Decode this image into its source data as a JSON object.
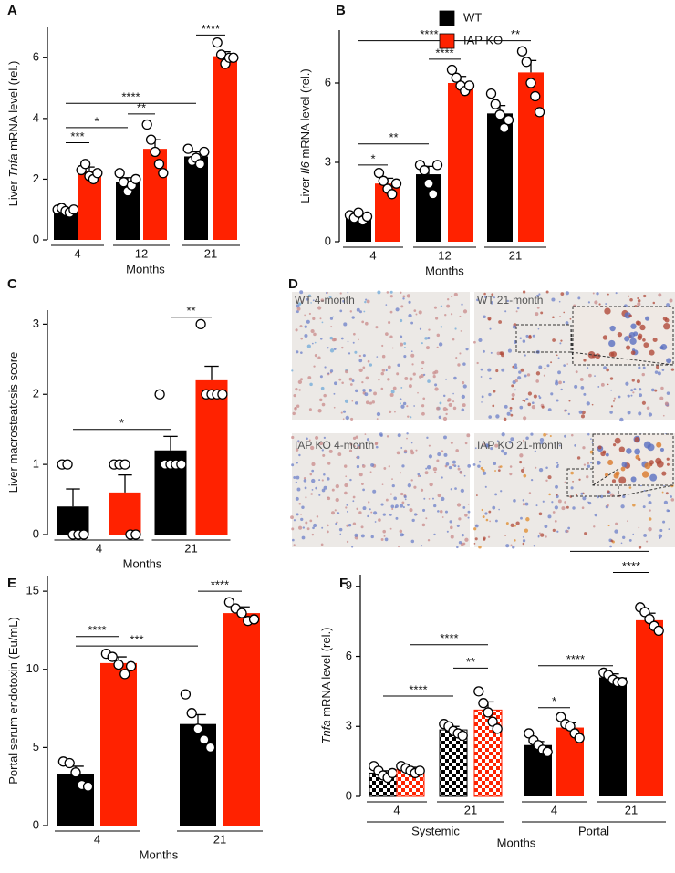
{
  "chart_data": [
    {
      "type": "bar",
      "panel": "A",
      "y_label": [
        "Liver ",
        "Tnfa",
        " mRNA level (rel.)"
      ],
      "y_label_italic": [
        false,
        true,
        false
      ],
      "x_label": "Months",
      "categories": [
        "4",
        "12",
        "21"
      ],
      "series": [
        {
          "color": "#000000",
          "values": [
            1.0,
            1.9,
            2.75
          ],
          "errors": [
            0.05,
            0.15,
            0.15
          ],
          "points": [
            [
              1.0,
              1.05,
              0.95,
              0.9,
              1.0
            ],
            [
              2.2,
              1.9,
              1.6,
              1.8,
              2.0
            ],
            [
              3.0,
              2.6,
              2.7,
              2.5,
              2.9
            ]
          ]
        },
        {
          "color": "#ff2200",
          "values": [
            2.25,
            3.0,
            6.05
          ],
          "errors": [
            0.15,
            0.3,
            0.15
          ],
          "points": [
            [
              2.3,
              2.5,
              2.1,
              2.0,
              2.2
            ],
            [
              3.8,
              3.3,
              2.9,
              2.5,
              2.2
            ],
            [
              6.5,
              6.1,
              5.8,
              6.0,
              6.0
            ]
          ]
        }
      ],
      "ylim": [
        0,
        7
      ],
      "yticks": [
        0,
        2,
        4,
        6
      ],
      "brackets": [
        {
          "label": "***",
          "from": [
            0,
            0
          ],
          "to": [
            0,
            1
          ],
          "y": 3.2
        },
        {
          "label": "*",
          "from": [
            0,
            0
          ],
          "to": [
            1,
            0
          ],
          "y": 3.7
        },
        {
          "label": "**",
          "from": [
            1,
            0
          ],
          "to": [
            1,
            1
          ],
          "y": 4.15
        },
        {
          "label": "****",
          "from": [
            0,
            0
          ],
          "to": [
            2,
            0
          ],
          "y": 4.5
        },
        {
          "label": "****",
          "from": [
            2,
            0
          ],
          "to": [
            2,
            1
          ],
          "y": 6.75
        }
      ]
    },
    {
      "type": "bar",
      "panel": "B",
      "y_label": [
        "Liver ",
        "Il6",
        " mRNA level (rel.)"
      ],
      "y_label_italic": [
        false,
        true,
        false
      ],
      "x_label": "Months",
      "categories": [
        "4",
        "12",
        "21"
      ],
      "legend": "upper right",
      "series": [
        {
          "name": "WT",
          "color": "#000000",
          "values": [
            0.95,
            2.55,
            4.85
          ],
          "errors": [
            0.1,
            0.3,
            0.3
          ],
          "points": [
            [
              1.0,
              0.9,
              1.1,
              0.8,
              0.95
            ],
            [
              2.9,
              2.7,
              2.2,
              1.8,
              2.9
            ],
            [
              5.6,
              5.2,
              4.8,
              4.3,
              4.6
            ]
          ]
        },
        {
          "name": "IAP KO",
          "color": "#ff2200",
          "values": [
            2.2,
            6.0,
            6.4
          ],
          "errors": [
            0.2,
            0.25,
            0.45
          ],
          "points": [
            [
              2.6,
              2.3,
              2.0,
              1.8,
              2.2
            ],
            [
              6.5,
              6.2,
              5.9,
              5.7,
              5.9
            ],
            [
              7.2,
              6.8,
              6.0,
              5.5,
              4.9
            ]
          ]
        }
      ],
      "ylim": [
        0,
        8
      ],
      "yticks": [
        0,
        3,
        6
      ],
      "brackets": [
        {
          "label": "*",
          "from": [
            0,
            0
          ],
          "to": [
            0,
            1
          ],
          "y": 2.9
        },
        {
          "label": "**",
          "from": [
            0,
            0
          ],
          "to": [
            1,
            0
          ],
          "y": 3.7
        },
        {
          "label": "****",
          "from": [
            1,
            0
          ],
          "to": [
            1,
            1
          ],
          "y": 6.9
        },
        {
          "label": "****",
          "from": [
            0,
            0
          ],
          "to": [
            2,
            0
          ],
          "y": 7.6
        },
        {
          "label": "**",
          "from": [
            2,
            0
          ],
          "to": [
            2,
            1
          ],
          "y": 7.6
        }
      ]
    },
    {
      "type": "bar",
      "panel": "C",
      "y_label": [
        "Liver macrosteatosis score"
      ],
      "y_label_italic": [
        false
      ],
      "x_label": "Months",
      "categories": [
        "4",
        "21"
      ],
      "series": [
        {
          "color": "#000000",
          "values": [
            0.4,
            1.2
          ],
          "errors": [
            0.25,
            0.2
          ],
          "points": [
            [
              1,
              1,
              0,
              0,
              0
            ],
            [
              2,
              1,
              1,
              1,
              1
            ]
          ]
        },
        {
          "color": "#ff2200",
          "values": [
            0.6,
            2.2
          ],
          "errors": [
            0.25,
            0.2
          ],
          "points": [
            [
              1,
              1,
              1,
              0,
              0
            ],
            [
              3,
              2,
              2,
              2,
              2
            ]
          ]
        }
      ],
      "ylim": [
        0,
        3.2
      ],
      "yticks": [
        0,
        1,
        2,
        3
      ],
      "brackets": [
        {
          "label": "*",
          "from": [
            0,
            0
          ],
          "to": [
            1,
            0
          ],
          "y": 1.5
        },
        {
          "label": "**",
          "from": [
            1,
            0
          ],
          "to": [
            1,
            1
          ],
          "y": 3.1
        }
      ]
    },
    {
      "type": "bar",
      "panel": "E",
      "y_label": [
        "Portal serum endotoxin (Eu/mL)"
      ],
      "y_label_italic": [
        false
      ],
      "x_label": "Months",
      "categories": [
        "4",
        "21"
      ],
      "series": [
        {
          "color": "#000000",
          "values": [
            3.3,
            6.5
          ],
          "errors": [
            0.5,
            0.6
          ],
          "points": [
            [
              4.1,
              4.0,
              3.4,
              2.6,
              2.5
            ],
            [
              8.4,
              7.2,
              6.2,
              5.5,
              5.0
            ]
          ]
        },
        {
          "color": "#ff2200",
          "values": [
            10.4,
            13.6
          ],
          "errors": [
            0.4,
            0.4
          ],
          "points": [
            [
              11.0,
              10.8,
              10.3,
              9.7,
              10.2
            ],
            [
              14.3,
              13.9,
              13.6,
              13.1,
              13.2
            ]
          ]
        }
      ],
      "ylim": [
        0,
        16
      ],
      "yticks": [
        0,
        5,
        10,
        15
      ],
      "brackets": [
        {
          "label": "****",
          "from": [
            0,
            0
          ],
          "to": [
            0,
            1
          ],
          "y": 12.1
        },
        {
          "label": "***",
          "from": [
            0,
            0
          ],
          "to": [
            1,
            0
          ],
          "y": 11.5
        },
        {
          "label": "****",
          "from": [
            1,
            0
          ],
          "to": [
            1,
            1
          ],
          "y": 15.0
        }
      ]
    },
    {
      "type": "bar",
      "panel": "F",
      "y_label": [
        "Tnfa",
        " mRNA level (rel.)"
      ],
      "y_label_italic": [
        true,
        false
      ],
      "x_label": "Months",
      "categories": [
        "4",
        "21",
        "4",
        "21"
      ],
      "groups": [
        "Systemic",
        "Portal"
      ],
      "checkered": [
        true,
        true,
        false,
        false
      ],
      "series": [
        {
          "color": "#000000",
          "values": [
            1.0,
            2.85,
            2.2,
            5.1
          ],
          "errors": [
            0.1,
            0.15,
            0.15,
            0.15
          ],
          "points": [
            [
              1.3,
              1.1,
              0.9,
              0.8,
              1.0
            ],
            [
              3.1,
              3.0,
              2.8,
              2.7,
              2.6
            ],
            [
              2.7,
              2.4,
              2.2,
              2.0,
              1.9
            ],
            [
              5.3,
              5.2,
              5.0,
              4.9,
              4.9
            ]
          ]
        },
        {
          "color": "#ff2200",
          "values": [
            1.15,
            3.7,
            2.95,
            7.55
          ],
          "errors": [
            0.1,
            0.35,
            0.2,
            0.3
          ],
          "points": [
            [
              1.3,
              1.2,
              1.1,
              1.0,
              1.1
            ],
            [
              4.5,
              4.0,
              3.6,
              3.2,
              2.9
            ],
            [
              3.4,
              3.1,
              3.0,
              2.7,
              2.5
            ],
            [
              8.1,
              7.9,
              7.6,
              7.3,
              7.1
            ]
          ]
        }
      ],
      "ylim": [
        0,
        9.5
      ],
      "yticks": [
        0,
        3,
        6,
        9
      ],
      "brackets": [
        {
          "label": "****",
          "from": [
            0,
            0
          ],
          "to": [
            1,
            0
          ],
          "y": 4.3
        },
        {
          "label": "**",
          "from": [
            1,
            0
          ],
          "to": [
            1,
            1
          ],
          "y": 5.5
        },
        {
          "label": "****",
          "from": [
            0,
            1
          ],
          "to": [
            1,
            1
          ],
          "y": 6.5
        },
        {
          "label": "*",
          "from": [
            2,
            0
          ],
          "to": [
            2,
            1
          ],
          "y": 3.8
        },
        {
          "label": "****",
          "from": [
            2,
            0
          ],
          "to": [
            3,
            0
          ],
          "y": 5.6
        },
        {
          "label": "****",
          "from": [
            3,
            0
          ],
          "to": [
            3,
            1
          ],
          "y": 9.6
        },
        {
          "label": "****",
          "from": [
            2,
            1
          ],
          "to": [
            3,
            1
          ],
          "y": 10.5
        }
      ]
    }
  ],
  "micrographs": {
    "panel": "D",
    "labels": [
      "WT 4-month",
      "WT 21-month",
      "IAP KO 4-month",
      "IAP KO 21-month"
    ]
  }
}
